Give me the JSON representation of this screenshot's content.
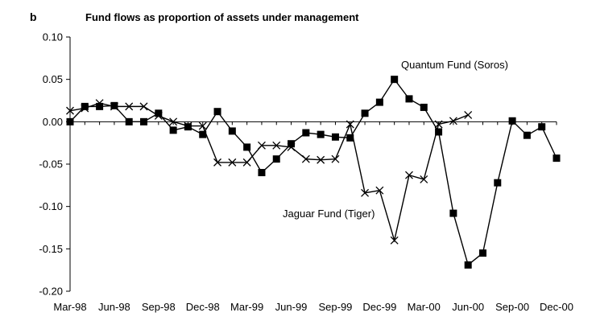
{
  "chart_data": {
    "type": "line",
    "panel_label": "b",
    "title": "Fund flows as proportion of assets under management",
    "xlabel": "",
    "ylabel": "",
    "ylim": [
      -0.2,
      0.1
    ],
    "yticks": [
      "0.10",
      "0.05",
      "0.00",
      "-0.05",
      "-0.10",
      "-0.15",
      "-0.20"
    ],
    "ytick_values": [
      0.1,
      0.05,
      0.0,
      -0.05,
      -0.1,
      -0.15,
      -0.2
    ],
    "xticks": [
      "Mar-98",
      "Jun-98",
      "Sep-98",
      "Dec-98",
      "Mar-99",
      "Jun-99",
      "Sep-99",
      "Dec-99",
      "Mar-00",
      "Jun-00",
      "Sep-00",
      "Dec-00"
    ],
    "xtick_month_index": [
      0,
      3,
      6,
      9,
      12,
      15,
      18,
      21,
      24,
      27,
      30,
      33
    ],
    "x_months": [
      "Mar-98",
      "Apr-98",
      "May-98",
      "Jun-98",
      "Jul-98",
      "Aug-98",
      "Sep-98",
      "Oct-98",
      "Nov-98",
      "Dec-98",
      "Jan-99",
      "Feb-99",
      "Mar-99",
      "Apr-99",
      "May-99",
      "Jun-99",
      "Jul-99",
      "Aug-99",
      "Sep-99",
      "Oct-99",
      "Nov-99",
      "Dec-99",
      "Jan-00",
      "Feb-00",
      "Mar-00",
      "Apr-00",
      "May-00",
      "Jun-00",
      "Jul-00",
      "Aug-00",
      "Sep-00",
      "Oct-00",
      "Nov-00",
      "Dec-00"
    ],
    "grid": false,
    "legend": "none",
    "series": [
      {
        "name": "Quantum Fund (Soros)",
        "marker": "square",
        "x": [
          "Mar-98",
          "Apr-98",
          "May-98",
          "Jun-98",
          "Jul-98",
          "Aug-98",
          "Sep-98",
          "Oct-98",
          "Nov-98",
          "Dec-98",
          "Jan-99",
          "Feb-99",
          "Mar-99",
          "Apr-99",
          "May-99",
          "Jun-99",
          "Jul-99",
          "Aug-99",
          "Sep-99",
          "Oct-99",
          "Nov-99",
          "Dec-99",
          "Jan-00",
          "Feb-00",
          "Mar-00",
          "Apr-00",
          "May-00",
          "Jun-00",
          "Jul-00",
          "Aug-00",
          "Sep-00",
          "Oct-00",
          "Nov-00",
          "Dec-00"
        ],
        "values": [
          0.0,
          0.018,
          0.018,
          0.019,
          0.0,
          0.0,
          0.01,
          -0.01,
          -0.006,
          -0.015,
          0.012,
          -0.011,
          -0.03,
          -0.06,
          -0.044,
          -0.026,
          -0.013,
          -0.015,
          -0.018,
          -0.019,
          0.01,
          0.023,
          0.05,
          0.027,
          0.017,
          -0.012,
          -0.108,
          -0.169,
          -0.155,
          -0.072,
          0.001,
          -0.016,
          -0.006,
          -0.043
        ]
      },
      {
        "name": "Jaguar Fund (Tiger)",
        "marker": "x",
        "x": [
          "Mar-98",
          "Apr-98",
          "May-98",
          "Jun-98",
          "Jul-98",
          "Aug-98",
          "Sep-98",
          "Oct-98",
          "Nov-98",
          "Dec-98",
          "Jan-99",
          "Feb-99",
          "Mar-99",
          "Apr-99",
          "May-99",
          "Jun-99",
          "Jul-99",
          "Aug-99",
          "Sep-99",
          "Oct-99",
          "Nov-99",
          "Dec-99",
          "Jan-00",
          "Feb-00",
          "Mar-00",
          "Apr-00",
          "May-00",
          "Jun-00"
        ],
        "values": [
          0.013,
          0.016,
          0.022,
          0.018,
          0.018,
          0.018,
          0.007,
          0.0,
          -0.005,
          -0.005,
          -0.048,
          -0.048,
          -0.048,
          -0.028,
          -0.028,
          -0.03,
          -0.044,
          -0.045,
          -0.044,
          -0.003,
          -0.084,
          -0.081,
          -0.14,
          -0.063,
          -0.068,
          -0.003,
          0.001,
          0.008
        ]
      }
    ],
    "annotations": [
      {
        "text": "Quantum Fund (Soros)",
        "series": 0
      },
      {
        "text": "Jaguar Fund (Tiger)",
        "series": 1
      }
    ]
  }
}
